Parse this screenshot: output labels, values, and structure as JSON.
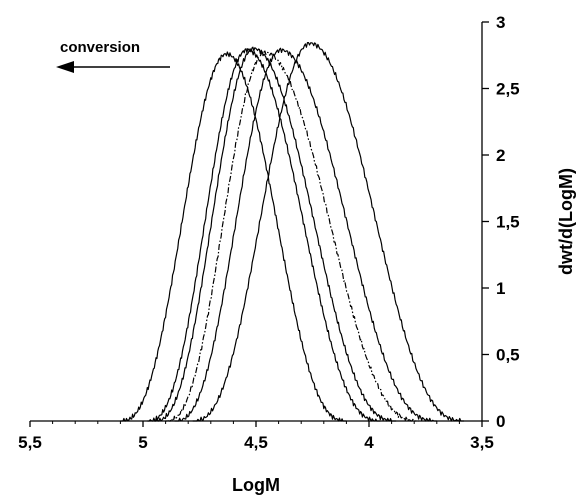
{
  "chart_data": {
    "type": "line",
    "title": "",
    "xlabel": "LogM",
    "ylabel": "dwt/d(LogM)",
    "x_reversed": true,
    "xlim": [
      5.5,
      3.5
    ],
    "ylim": [
      0,
      3
    ],
    "x_ticks": [
      5.5,
      5,
      4.5,
      4,
      3.5
    ],
    "x_tick_labels": [
      "5,5",
      "5",
      "4,5",
      "4",
      "3,5"
    ],
    "y_ticks": [
      0,
      0.5,
      1,
      1.5,
      2,
      2.5,
      3
    ],
    "y_tick_labels": [
      "0",
      "0,5",
      "1",
      "1,5",
      "2",
      "2,5",
      "3"
    ],
    "y_axis_position": "right",
    "grid": false,
    "legend": "none",
    "annotation": {
      "text": "conversion",
      "arrow": "left"
    },
    "series": [
      {
        "line_style": "solid",
        "peak_x": 4.63,
        "peak_y": 2.76,
        "start_x": 5.1,
        "end_x": 4.1
      },
      {
        "line_style": "solid",
        "peak_x": 4.54,
        "peak_y": 2.79,
        "start_x": 4.98,
        "end_x": 3.95
      },
      {
        "line_style": "solid",
        "peak_x": 4.51,
        "peak_y": 2.8,
        "start_x": 4.95,
        "end_x": 3.88
      },
      {
        "line_style": "dashdot",
        "peak_x": 4.46,
        "peak_y": 2.77,
        "start_x": 4.9,
        "end_x": 3.78
      },
      {
        "line_style": "solid",
        "peak_x": 4.39,
        "peak_y": 2.79,
        "start_x": 4.86,
        "end_x": 3.7
      },
      {
        "line_style": "solid",
        "peak_x": 4.26,
        "peak_y": 2.84,
        "start_x": 4.78,
        "end_x": 3.58
      }
    ]
  }
}
